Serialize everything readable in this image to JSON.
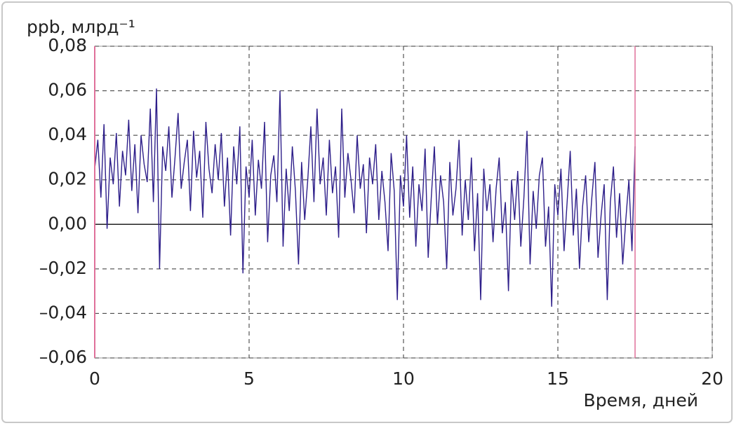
{
  "chart_data": {
    "type": "line",
    "y_label": "ppb, млрд⁻¹",
    "x_label": "Время, дней",
    "xlim": [
      0,
      20
    ],
    "xticks": [
      0,
      5,
      10,
      15,
      20
    ],
    "ylim": [
      -0.06,
      0.08
    ],
    "yticks": [
      {
        "value": -0.06,
        "label": "–0,06"
      },
      {
        "value": -0.04,
        "label": "–0,04"
      },
      {
        "value": -0.02,
        "label": "–0,02"
      },
      {
        "value": 0,
        "label": "0,00"
      },
      {
        "value": 0.02,
        "label": "0,02"
      },
      {
        "value": 0.04,
        "label": "0,04"
      },
      {
        "value": 0.06,
        "label": "0,06"
      },
      {
        "value": 0.08,
        "label": "0,08"
      }
    ],
    "grid": true,
    "marker": {
      "x": 17.5,
      "color": "#e0709a"
    },
    "series": [
      {
        "color": "#2e1f8a",
        "x": [
          0,
          0.1,
          0.2,
          0.3,
          0.4,
          0.5,
          0.6,
          0.7,
          0.8,
          0.9,
          1,
          1.1,
          1.2,
          1.3,
          1.4,
          1.5,
          1.6,
          1.7,
          1.8,
          1.9,
          2,
          2.1,
          2.2,
          2.3,
          2.4,
          2.5,
          2.6,
          2.7,
          2.8,
          2.9,
          3,
          3.1,
          3.2,
          3.3,
          3.4,
          3.5,
          3.6,
          3.7,
          3.8,
          3.9,
          4,
          4.1,
          4.2,
          4.3,
          4.4,
          4.5,
          4.6,
          4.7,
          4.8,
          4.9,
          5,
          5.1,
          5.2,
          5.3,
          5.4,
          5.5,
          5.6,
          5.7,
          5.8,
          5.9,
          6,
          6.1,
          6.2,
          6.3,
          6.4,
          6.5,
          6.6,
          6.7,
          6.8,
          6.9,
          7,
          7.1,
          7.2,
          7.3,
          7.4,
          7.5,
          7.6,
          7.7,
          7.8,
          7.9,
          8,
          8.1,
          8.2,
          8.3,
          8.4,
          8.5,
          8.6,
          8.7,
          8.8,
          8.9,
          9,
          9.1,
          9.2,
          9.3,
          9.4,
          9.5,
          9.6,
          9.7,
          9.8,
          9.9,
          10,
          10.1,
          10.2,
          10.3,
          10.4,
          10.5,
          10.6,
          10.7,
          10.8,
          10.9,
          11,
          11.1,
          11.2,
          11.3,
          11.4,
          11.5,
          11.6,
          11.7,
          11.8,
          11.9,
          12,
          12.1,
          12.2,
          12.3,
          12.4,
          12.5,
          12.6,
          12.7,
          12.8,
          12.9,
          13,
          13.1,
          13.2,
          13.3,
          13.4,
          13.5,
          13.6,
          13.7,
          13.8,
          13.9,
          14,
          14.1,
          14.2,
          14.3,
          14.4,
          14.5,
          14.6,
          14.7,
          14.8,
          14.9,
          15,
          15.1,
          15.2,
          15.3,
          15.4,
          15.5,
          15.6,
          15.7,
          15.8,
          15.9,
          16,
          16.1,
          16.2,
          16.3,
          16.4,
          16.5,
          16.6,
          16.7,
          16.8,
          16.9,
          17,
          17.1,
          17.2,
          17.3,
          17.4,
          17.5
        ],
        "values": [
          0.025,
          0.038,
          0.012,
          0.045,
          -0.002,
          0.03,
          0.018,
          0.041,
          0.008,
          0.033,
          0.022,
          0.047,
          0.015,
          0.036,
          0.005,
          0.04,
          0.027,
          0.019,
          0.052,
          0.01,
          0.061,
          -0.02,
          0.035,
          0.024,
          0.044,
          0.012,
          0.03,
          0.05,
          0.016,
          0.028,
          0.038,
          0.006,
          0.042,
          0.021,
          0.033,
          0.003,
          0.046,
          0.025,
          0.014,
          0.036,
          0.02,
          0.041,
          0.008,
          0.03,
          -0.005,
          0.035,
          0.018,
          0.044,
          -0.022,
          0.026,
          0.012,
          0.038,
          0.004,
          0.029,
          0.016,
          0.046,
          -0.008,
          0.022,
          0.031,
          0.01,
          0.06,
          -0.01,
          0.025,
          0.006,
          0.035,
          0.015,
          -0.018,
          0.028,
          0.002,
          0.02,
          0.044,
          0.01,
          0.052,
          0.018,
          0.03,
          0.004,
          0.038,
          0.014,
          0.026,
          -0.006,
          0.052,
          0.012,
          0.032,
          0.02,
          0.005,
          0.04,
          0.016,
          0.027,
          -0.004,
          0.03,
          0.018,
          0.036,
          0.002,
          0.024,
          0.01,
          -0.012,
          0.032,
          0.015,
          -0.034,
          0.022,
          0.008,
          0.04,
          0.003,
          0.026,
          -0.01,
          0.018,
          0.006,
          0.034,
          -0.015,
          0.012,
          0.035,
          0.0,
          0.022,
          0.01,
          -0.02,
          0.028,
          0.004,
          0.016,
          0.038,
          -0.005,
          0.02,
          0.002,
          0.03,
          -0.012,
          0.014,
          -0.034,
          0.025,
          0.006,
          0.018,
          -0.008,
          0.016,
          0.03,
          -0.004,
          0.01,
          -0.03,
          0.02,
          0.002,
          0.024,
          -0.01,
          0.012,
          0.042,
          -0.018,
          0.015,
          -0.002,
          0.022,
          0.03,
          -0.01,
          0.008,
          -0.037,
          0.018,
          0.004,
          0.025,
          -0.012,
          0.01,
          0.033,
          -0.005,
          0.016,
          -0.02,
          0.008,
          0.022,
          -0.008,
          0.012,
          0.028,
          -0.015,
          0.004,
          0.018,
          -0.034,
          0.01,
          0.026,
          -0.006,
          0.014,
          -0.018,
          0.002,
          0.02,
          -0.012,
          0.035
        ]
      }
    ]
  }
}
